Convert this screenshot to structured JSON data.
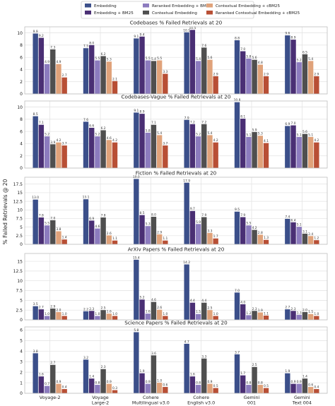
{
  "colors": {
    "Embedding": "#3b4f8a",
    "Embedding + BM25": "#4a2f74",
    "Reranked Embedding + BM25": "#8c7bbe",
    "Contextual Embedding": "#4f4f4f",
    "Contextual Embedding + cBM25": "#e0a27a",
    "Reranked Contextual Embedding + cBM25": "#b84f35"
  },
  "legend": {
    "items": [
      "Embedding",
      "Embedding + BM25",
      "Reranked Embedding + BM25",
      "Contextual Embedding",
      "Contextual Embedding + cBM25",
      "Reranked Contextual Embedding + cBM25"
    ],
    "placement": "top-center"
  },
  "shared_ylabel": "% Failed Retrievals @ 20",
  "categories": [
    "Voyage-2",
    "Voyage\nLarge-2",
    "Cohere\nMultilingual v3.0",
    "Cohere\nEnglish v3.0",
    "Gemini\n001",
    "Gemini\nText 004"
  ],
  "chart_data": [
    {
      "type": "bar",
      "title": "Codebases % Failed Retrievals at 20",
      "ylim": [
        0,
        11
      ],
      "yticks": [
        0,
        2,
        4,
        6,
        8,
        10
      ],
      "grid": true,
      "series": [
        {
          "name": "Embedding",
          "values": [
            9.9,
            7.5,
            9.1,
            10.1,
            8.8,
            9.6
          ]
        },
        {
          "name": "Embedding + BM25",
          "values": [
            9.2,
            8.0,
            9.4,
            10.5,
            7.0,
            8.9
          ]
        },
        {
          "name": "Reranked Embedding + BM25",
          "values": [
            4.9,
            5.5,
            5.5,
            5.4,
            5.8,
            5.2
          ]
        },
        {
          "name": "Contextual Embedding",
          "values": [
            7.3,
            6.2,
            5.4,
            7.6,
            5.6,
            6.5
          ]
        },
        {
          "name": "Contextual Embedding + cBM25",
          "values": [
            4.9,
            5.3,
            5.5,
            5.6,
            4.8,
            5.4
          ]
        },
        {
          "name": "Reranked Contextual Embedding + cBM25",
          "values": [
            2.7,
            2.1,
            3.3,
            2.9,
            2.9,
            2.9
          ]
        }
      ]
    },
    {
      "type": "bar",
      "title": "Codebases-Vague % Failed Retrievals at 20",
      "ylim": [
        0,
        11
      ],
      "yticks": [
        0,
        2,
        4,
        6,
        8,
        10
      ],
      "grid": true,
      "series": [
        {
          "name": "Embedding",
          "values": [
            8.5,
            7.6,
            9.1,
            7.9,
            10.8,
            6.9
          ]
        },
        {
          "name": "Embedding + BM25",
          "values": [
            7.1,
            6.6,
            8.9,
            7.2,
            8.1,
            7.0
          ]
        },
        {
          "name": "Reranked Embedding + BM25",
          "values": [
            5.2,
            5.2,
            5.8,
            5.2,
            5.1,
            5.1
          ]
        },
        {
          "name": "Contextual Embedding",
          "values": [
            3.9,
            6.2,
            7.1,
            7.2,
            5.9,
            5.6
          ]
        },
        {
          "name": "Contextual Embedding + cBM25",
          "values": [
            4.2,
            4.6,
            5.4,
            5.4,
            5.3,
            5.1
          ]
        },
        {
          "name": "Reranked Contextual Embedding + cBM25",
          "values": [
            3.7,
            4.2,
            3.7,
            4.2,
            4.1,
            4.2
          ]
        }
      ]
    },
    {
      "type": "bar",
      "title": "Fiction % Failed Retrievals at 20",
      "ylim": [
        0,
        19.5
      ],
      "yticks": [
        0,
        2.5,
        5.0,
        7.5,
        10.0,
        12.5,
        15.0,
        17.5
      ],
      "grid": true,
      "series": [
        {
          "name": "Embedding",
          "values": [
            13.0,
            13.1,
            19.0,
            17.9,
            9.5,
            7.4
          ]
        },
        {
          "name": "Embedding + BM25",
          "values": [
            7.8,
            6.9,
            8.5,
            9.7,
            7.9,
            6.4
          ]
        },
        {
          "name": "Reranked Embedding + BM25",
          "values": [
            5.5,
            4.6,
            5.3,
            5.9,
            5.5,
            5.1
          ]
        },
        {
          "name": "Contextual Embedding",
          "values": [
            7.0,
            7.8,
            8.0,
            7.9,
            4.2,
            3.1
          ]
        },
        {
          "name": "Contextual Embedding + cBM25",
          "values": [
            3.8,
            2.6,
            2.9,
            3.3,
            2.8,
            2.4
          ]
        },
        {
          "name": "Reranked Contextual Embedding + cBM25",
          "values": [
            1.4,
            1.1,
            1.1,
            1.7,
            1.3,
            1.2
          ]
        }
      ]
    },
    {
      "type": "bar",
      "title": "ArXiv Papers % Failed Retrievals at 20",
      "ylim": [
        0,
        17
      ],
      "yticks": [
        0,
        2.5,
        5.0,
        7.5,
        10.0,
        12.5,
        15.0
      ],
      "grid": true,
      "series": [
        {
          "name": "Embedding",
          "values": [
            3.5,
            2.2,
            15.4,
            14.2,
            7.0,
            2.7
          ]
        },
        {
          "name": "Embedding + BM25",
          "values": [
            2.7,
            2.3,
            5.2,
            4.4,
            4.0,
            2.3
          ]
        },
        {
          "name": "Reranked Embedding + BM25",
          "values": [
            1.0,
            1.0,
            1.6,
            1.5,
            1.2,
            1.3
          ]
        },
        {
          "name": "Contextual Embedding",
          "values": [
            2.9,
            2.5,
            4.6,
            4.4,
            2.3,
            2.0
          ]
        },
        {
          "name": "Contextual Embedding + cBM25",
          "values": [
            2.0,
            1.6,
            2.6,
            2.5,
            1.9,
            1.5
          ]
        },
        {
          "name": "Reranked Contextual Embedding + cBM25",
          "values": [
            1.0,
            1.0,
            1.0,
            1.0,
            1.1,
            1.0
          ]
        }
      ]
    },
    {
      "type": "bar",
      "title": "Science Papers % Failed Retrievals at 20",
      "ylim": [
        0,
        6.3
      ],
      "yticks": [
        0,
        1,
        2,
        3,
        4,
        5,
        6
      ],
      "grid": true,
      "series": [
        {
          "name": "Embedding",
          "values": [
            3.8,
            3.2,
            5.8,
            4.7,
            3.7,
            1.9
          ]
        },
        {
          "name": "Embedding + BM25",
          "values": [
            1.6,
            1.4,
            1.9,
            1.6,
            1.7,
            0.9
          ]
        },
        {
          "name": "Reranked Embedding + BM25",
          "values": [
            0.7,
            0.8,
            0.9,
            0.8,
            0.8,
            0.9
          ]
        },
        {
          "name": "Contextual Embedding",
          "values": [
            2.7,
            2.3,
            3.6,
            3.3,
            2.5,
            1.4
          ]
        },
        {
          "name": "Contextual Embedding + cBM25",
          "values": [
            0.9,
            0.9,
            1.0,
            0.9,
            0.8,
            0.6
          ]
        },
        {
          "name": "Reranked Contextual Embedding + cBM25",
          "values": [
            0.4,
            0.3,
            0.6,
            0.5,
            0.5,
            0.4
          ]
        }
      ]
    }
  ]
}
